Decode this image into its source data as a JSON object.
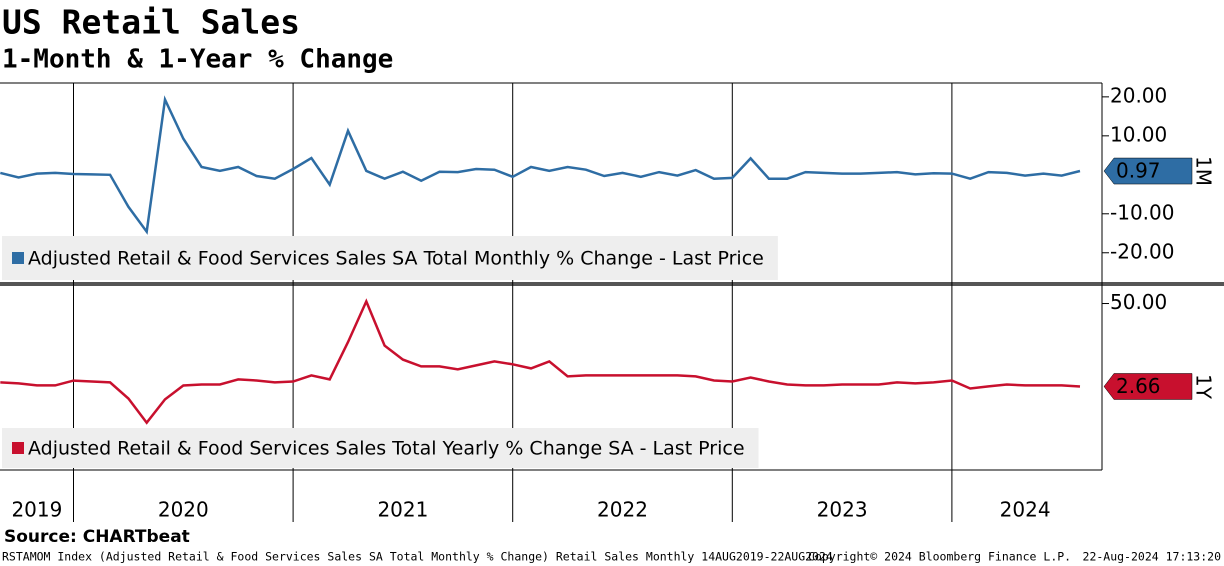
{
  "title": "US Retail Sales",
  "subtitle": "1-Month & 1-Year % Change",
  "source": "Source: CHARTbeat",
  "footer": {
    "left": "RSTAMOM Index (Adjusted Retail & Food Services Sales SA Total Monthly % Change) Retail Sales  Monthly 14AUG2019-22AUG2024",
    "center": "Copyright© 2024 Bloomberg Finance L.P.",
    "right": "22-Aug-2024 17:13:20"
  },
  "chart_data": [
    {
      "type": "line",
      "tag": "1M",
      "ylim": [
        -27.5,
        23.3
      ],
      "yticks": [
        {
          "value": 20,
          "label": "20.00"
        },
        {
          "value": 10,
          "label": "10.00"
        },
        {
          "value": -10,
          "label": "-10.00"
        },
        {
          "value": -20,
          "label": "-20.00"
        }
      ],
      "series": [
        {
          "name": "Adjusted Retail & Food Services Sales SA Total Monthly % Change - Last Price",
          "color": "#2e6da4",
          "values": [
            0.5,
            -0.7,
            0.3,
            0.5,
            0.2,
            0.1,
            0.0,
            -8.2,
            -14.6,
            19.3,
            9.3,
            2.0,
            1.0,
            2.0,
            -0.3,
            -1.0,
            1.5,
            4.3,
            -2.5,
            11.3,
            1.0,
            -1.0,
            0.8,
            -1.5,
            0.8,
            0.7,
            1.5,
            1.3,
            -0.5,
            2.0,
            1.0,
            2.0,
            1.3,
            -0.3,
            0.5,
            -0.5,
            0.7,
            -0.2,
            1.2,
            -1.0,
            -0.8,
            4.2,
            -1.0,
            -1.0,
            0.7,
            0.5,
            0.3,
            0.3,
            0.5,
            0.7,
            0.1,
            0.4,
            0.3,
            -1.0,
            0.7,
            0.5,
            -0.2,
            0.3,
            -0.2,
            0.97
          ]
        }
      ]
    },
    {
      "type": "line",
      "tag": "1Y",
      "ylim": [
        -45,
        60
      ],
      "yticks": [
        {
          "value": 50,
          "label": "50.00"
        }
      ],
      "categories": [
        null,
        null,
        "2019",
        null,
        null,
        null,
        null,
        null,
        null,
        null,
        "2020",
        null,
        null,
        null,
        null,
        null,
        null,
        null,
        null,
        null,
        null,
        null,
        "2021",
        null,
        null,
        null,
        null,
        null,
        null,
        null,
        null,
        null,
        null,
        null,
        "2022",
        null,
        null,
        null,
        null,
        null,
        null,
        null,
        null,
        null,
        null,
        null,
        "2023",
        null,
        null,
        null,
        null,
        null,
        null,
        null,
        null,
        null,
        "2024",
        null,
        null,
        null
      ],
      "series": [
        {
          "name": "Adjusted Retail & Food Services Sales Total Yearly % Change SA - Last Price",
          "color": "#c8102e",
          "values": [
            5,
            4.4,
            3.3,
            3.3,
            6,
            5.5,
            5,
            -4.2,
            -18,
            -4.7,
            3.2,
            3.8,
            3.8,
            6.7,
            6.1,
            5,
            5.5,
            9,
            6.7,
            28,
            51.2,
            26,
            18,
            14.1,
            14.1,
            12.4,
            14.7,
            17,
            15.3,
            13,
            17,
            8.4,
            9,
            9,
            9,
            9,
            9,
            9,
            8.4,
            6.1,
            5.5,
            7.8,
            5.5,
            3.8,
            3.3,
            3.3,
            3.8,
            3.8,
            3.8,
            5,
            4.4,
            5,
            6.1,
            1.5,
            2.7,
            3.8,
            3.3,
            3.3,
            3.3,
            2.66
          ]
        }
      ]
    }
  ]
}
